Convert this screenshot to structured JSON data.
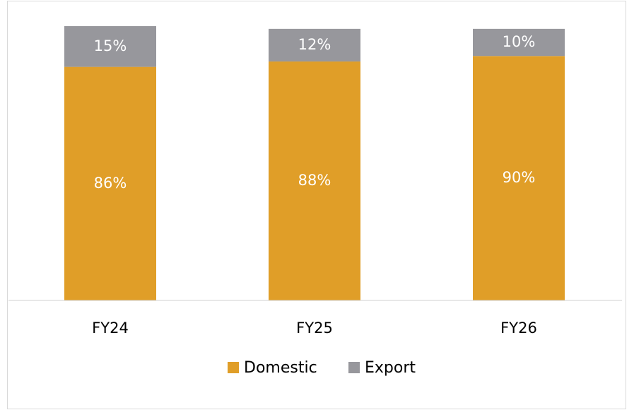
{
  "chart_data": {
    "type": "stacked_bar",
    "categories": [
      "FY24",
      "FY25",
      "FY26"
    ],
    "series": [
      {
        "name": "Domestic",
        "color": "#e09e28",
        "values": [
          86,
          88,
          90
        ],
        "value_labels": [
          "86%",
          "88%",
          "90%"
        ]
      },
      {
        "name": "Export",
        "color": "#97979c",
        "values": [
          15,
          12,
          10
        ],
        "value_labels": [
          "15%",
          "12%",
          "10%"
        ]
      }
    ],
    "legend": "bottom"
  }
}
